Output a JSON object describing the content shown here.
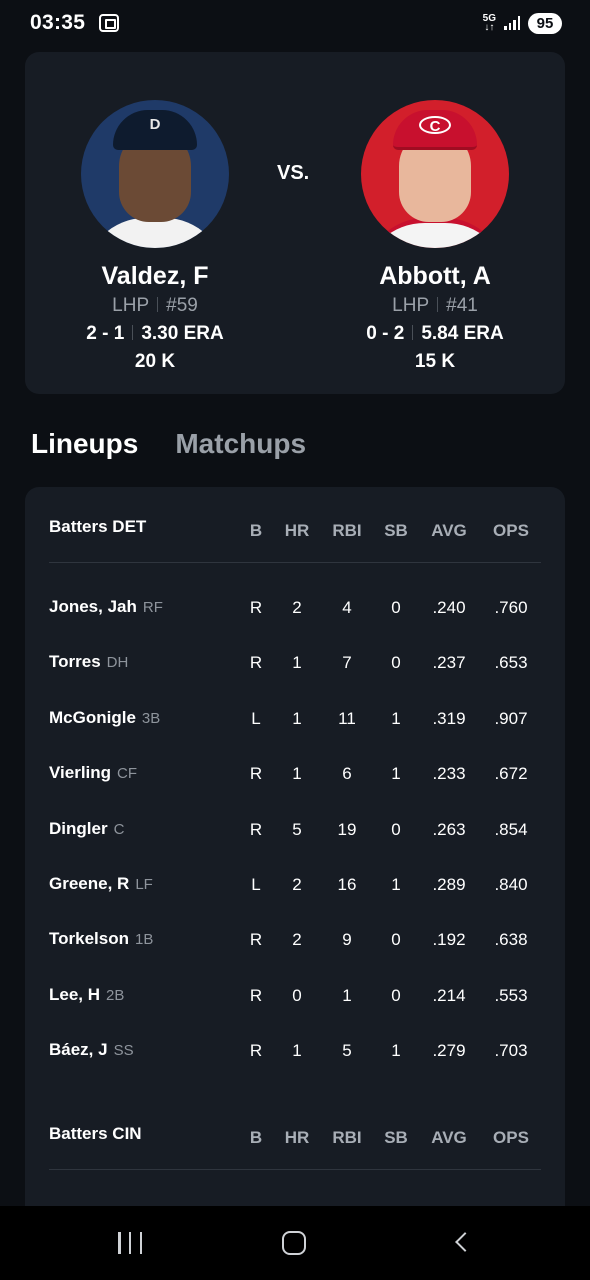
{
  "status_bar": {
    "time": "03:35",
    "network": "5G",
    "battery": "95"
  },
  "matchup": {
    "vs_label": "VS.",
    "away_pitcher": {
      "name": "Valdez, F",
      "throws": "LHP",
      "number": "#59",
      "record": "2 - 1",
      "era": "3.30 ERA",
      "strikeouts": "20 K",
      "team_logo_letter": "D"
    },
    "home_pitcher": {
      "name": "Abbott, A",
      "throws": "LHP",
      "number": "#41",
      "record": "0 - 2",
      "era": "5.84 ERA",
      "strikeouts": "15 K",
      "team_logo_letter": "C"
    }
  },
  "tabs": [
    {
      "label": "Lineups",
      "active": true
    },
    {
      "label": "Matchups",
      "active": false
    }
  ],
  "columns": [
    "B",
    "HR",
    "RBI",
    "SB",
    "AVG",
    "OPS"
  ],
  "lineups": [
    {
      "title": "Batters DET",
      "batters": [
        {
          "name": "Jones, Jah",
          "pos": "RF",
          "b": "R",
          "hr": "2",
          "rbi": "4",
          "sb": "0",
          "avg": ".240",
          "ops": ".760"
        },
        {
          "name": "Torres",
          "pos": "DH",
          "b": "R",
          "hr": "1",
          "rbi": "7",
          "sb": "0",
          "avg": ".237",
          "ops": ".653"
        },
        {
          "name": "McGonigle",
          "pos": "3B",
          "b": "L",
          "hr": "1",
          "rbi": "11",
          "sb": "1",
          "avg": ".319",
          "ops": ".907"
        },
        {
          "name": "Vierling",
          "pos": "CF",
          "b": "R",
          "hr": "1",
          "rbi": "6",
          "sb": "1",
          "avg": ".233",
          "ops": ".672"
        },
        {
          "name": "Dingler",
          "pos": "C",
          "b": "R",
          "hr": "5",
          "rbi": "19",
          "sb": "0",
          "avg": ".263",
          "ops": ".854"
        },
        {
          "name": "Greene, R",
          "pos": "LF",
          "b": "L",
          "hr": "2",
          "rbi": "16",
          "sb": "1",
          "avg": ".289",
          "ops": ".840"
        },
        {
          "name": "Torkelson",
          "pos": "1B",
          "b": "R",
          "hr": "2",
          "rbi": "9",
          "sb": "0",
          "avg": ".192",
          "ops": ".638"
        },
        {
          "name": "Lee, H",
          "pos": "2B",
          "b": "R",
          "hr": "0",
          "rbi": "1",
          "sb": "0",
          "avg": ".214",
          "ops": ".553"
        },
        {
          "name": "Báez, J",
          "pos": "SS",
          "b": "R",
          "hr": "1",
          "rbi": "5",
          "sb": "1",
          "avg": ".279",
          "ops": ".703"
        }
      ]
    },
    {
      "title": "Batters CIN",
      "batters": []
    }
  ],
  "colors": {
    "background": "#0c0f14",
    "card": "#171c24",
    "muted_text": "#9aa0a8",
    "det_navy": "#1f3a68",
    "cin_red": "#d21f2b"
  }
}
